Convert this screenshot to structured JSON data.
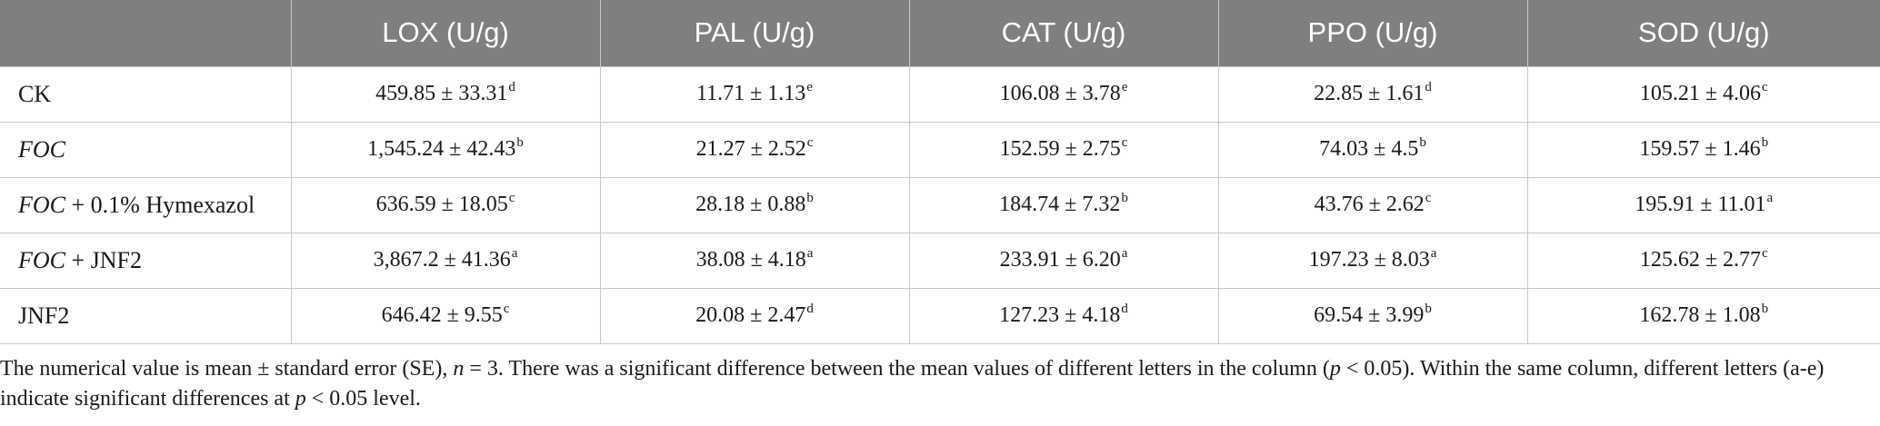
{
  "table": {
    "headers": [
      "",
      "LOX (U/g)",
      "PAL (U/g)",
      "CAT (U/g)",
      "PPO (U/g)",
      "SOD (U/g)"
    ],
    "rows": [
      {
        "label_italic": "",
        "label_rest": "CK",
        "cells": [
          {
            "value": "459.85 ± 33.31",
            "sig": "d"
          },
          {
            "value": "11.71 ± 1.13",
            "sig": "e"
          },
          {
            "value": "106.08 ± 3.78",
            "sig": "e"
          },
          {
            "value": "22.85 ± 1.61",
            "sig": "d"
          },
          {
            "value": "105.21 ± 4.06",
            "sig": "c"
          }
        ]
      },
      {
        "label_italic": "FOC",
        "label_rest": "",
        "cells": [
          {
            "value": "1,545.24 ± 42.43",
            "sig": "b"
          },
          {
            "value": "21.27 ± 2.52",
            "sig": "c"
          },
          {
            "value": "152.59 ± 2.75",
            "sig": "c"
          },
          {
            "value": "74.03 ± 4.5",
            "sig": "b"
          },
          {
            "value": "159.57 ± 1.46",
            "sig": "b"
          }
        ]
      },
      {
        "label_italic": "FOC",
        "label_rest": " + 0.1% Hymexazol",
        "cells": [
          {
            "value": "636.59 ± 18.05",
            "sig": "c"
          },
          {
            "value": "28.18 ± 0.88",
            "sig": "b"
          },
          {
            "value": "184.74 ± 7.32",
            "sig": "b"
          },
          {
            "value": "43.76 ± 2.62",
            "sig": "c"
          },
          {
            "value": "195.91 ± 11.01",
            "sig": "a"
          }
        ]
      },
      {
        "label_italic": "FOC",
        "label_rest": " + JNF2",
        "cells": [
          {
            "value": "3,867.2 ± 41.36",
            "sig": "a"
          },
          {
            "value": "38.08 ± 4.18",
            "sig": "a"
          },
          {
            "value": "233.91 ± 6.20",
            "sig": "a"
          },
          {
            "value": "197.23 ± 8.03",
            "sig": "a"
          },
          {
            "value": "125.62 ± 2.77",
            "sig": "c"
          }
        ]
      },
      {
        "label_italic": "",
        "label_rest": "JNF2",
        "cells": [
          {
            "value": "646.42 ± 9.55",
            "sig": "c"
          },
          {
            "value": "20.08 ± 2.47",
            "sig": "d"
          },
          {
            "value": "127.23 ± 4.18",
            "sig": "d"
          },
          {
            "value": "69.54 ± 3.99",
            "sig": "b"
          },
          {
            "value": "162.78 ± 1.08",
            "sig": "b"
          }
        ]
      }
    ]
  },
  "footnote": {
    "part1": "The numerical value is mean ± standard error (SE), ",
    "n_symbol": "n",
    "part2": " = 3. There was a significant difference between the mean values of different letters in the column (",
    "p_symbol_1": "p",
    "part3": " < 0.05). Within the same column, different letters (a-e) indicate significant differences at ",
    "p_symbol_2": "p",
    "part4": " < 0.05 level."
  },
  "colors": {
    "header_bg": "#7f7f7f",
    "header_text": "#ffffff",
    "grid_line": "#c8c8c8"
  }
}
